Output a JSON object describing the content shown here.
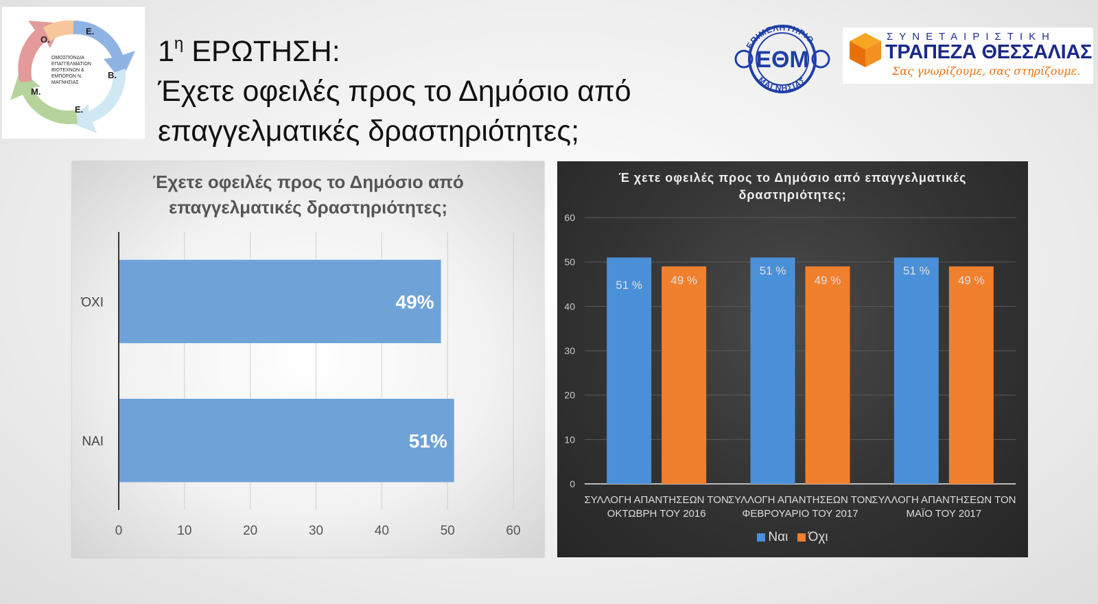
{
  "header": {
    "title_num": "1",
    "title_sup": "η",
    "title_rest": " ΕΡΩΤΗΣΗ:",
    "title_line2": "Έχετε οφειλές προς το Δημόσιο από",
    "title_line3": "επαγγελματικές δραστηριότητες;"
  },
  "logo_left": {
    "letters": [
      "Ο.",
      "Ε.",
      "Β.",
      "Ε.",
      "Μ."
    ],
    "lines": [
      "ΟΜΟΣΠΟΝΔΙΑ",
      "ΕΠΑΓΓΕΛΜΑΤΙΩΝ",
      "ΒΙΟΤΕΧΝΩΝ &",
      "ΕΜΠΟΡΩΝ Ν.",
      "ΜΑΓΝΗΣΙΑΣ"
    ]
  },
  "logo_seal": {
    "top_text": "ΕΠΙΜΕΛΗΤΗΡΙΟ",
    "bottom_text": "ΜΑΓΝΗΣΙΑΣ",
    "center": "ΕΘΜ"
  },
  "logo_bank": {
    "top": "ΣΥΝΕΤΑΙΡΙΣΤΙΚΗ",
    "name": "ΤΡΑΠΕΖΑ ΘΕΣΣΑΛΙΑΣ",
    "slogan": "Σας γνωρίζουμε, σας στηρίζουμε."
  },
  "chart_data": [
    {
      "type": "bar",
      "orientation": "horizontal",
      "title_line1": "Έχετε οφειλές προς το Δημόσιο από",
      "title_line2": "επαγγελματικές δραστηριότητες;",
      "categories": [
        "ΌΧΙ",
        "ΝΑΙ"
      ],
      "values": [
        49,
        51
      ],
      "data_labels": [
        "49%",
        "51%"
      ],
      "xlim": [
        0,
        60
      ],
      "ticks": [
        0,
        10,
        20,
        30,
        40,
        50,
        60
      ],
      "color": "#6fa3d8",
      "grid": true
    },
    {
      "type": "bar",
      "orientation": "vertical",
      "title_line1": "Έ χετε οφειλές προς το Δημόσιο από επαγγελματικές",
      "title_line2": "δραστηριότητες;",
      "categories": [
        [
          "ΣΥΛΛΟΓΗ ΑΠΑΝΤΗΣΕΩΝ ΤΟΝ",
          "ΟΚΤΩΒΡΗ ΤΟΥ 2016"
        ],
        [
          "ΣΥΛΛΟΓΗ ΑΠΑΝΤΗΣΕΩΝ ΤΟΝ",
          "ΦΕΒΡΟΥΑΡΙΟ ΤΟΥ 2017"
        ],
        [
          "ΣΥΛΛΟΓΗ ΑΠΑΝΤΗΣΕΩΝ ΤΟΝ",
          "ΜΑΪΟ ΤΟΥ 2017"
        ]
      ],
      "series": [
        {
          "name": "Ναι",
          "values": [
            51,
            51,
            51
          ],
          "labels": [
            "51 %",
            "51 %",
            "51 %"
          ],
          "color": "#4a90d9"
        },
        {
          "name": "Όχι",
          "values": [
            49,
            49,
            49
          ],
          "labels": [
            "49 %",
            "49 %",
            "49 %"
          ],
          "color": "#f07f2e"
        }
      ],
      "ylim": [
        0,
        60
      ],
      "ticks": [
        0,
        10,
        20,
        30,
        40,
        50,
        60
      ],
      "legend": "bottom",
      "grid": true
    }
  ]
}
